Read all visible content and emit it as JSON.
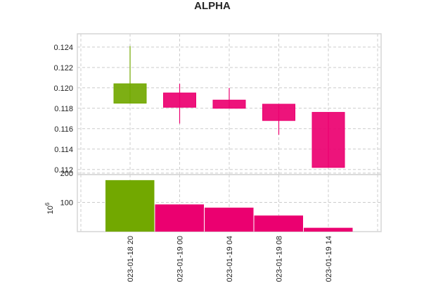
{
  "chart_data": {
    "type": "candlestick",
    "title": "ALPHA",
    "ylabel_volume_scale": "10",
    "ylabel_volume_exp": "6",
    "colors": {
      "up": "#72a800",
      "down": "#eb0070"
    },
    "categories": [
      "023-01-18 20",
      "023-01-19 00",
      "023-01-19 04",
      "023-01-19 08",
      "023-01-19 14"
    ],
    "candles": [
      {
        "open": 0.1185,
        "high": 0.1241,
        "low": 0.1185,
        "close": 0.1204,
        "direction": "up"
      },
      {
        "open": 0.1195,
        "high": 0.1204,
        "low": 0.1165,
        "close": 0.1181,
        "direction": "down"
      },
      {
        "open": 0.1188,
        "high": 0.12,
        "low": 0.118,
        "close": 0.118,
        "direction": "down"
      },
      {
        "open": 0.1184,
        "high": 0.1184,
        "low": 0.1154,
        "close": 0.1168,
        "direction": "down"
      },
      {
        "open": 0.1176,
        "high": 0.1176,
        "low": 0.1122,
        "close": 0.1122,
        "direction": "down"
      }
    ],
    "volumes": [
      176,
      93,
      82,
      55,
      13
    ],
    "price_ylim": [
      0.1115,
      0.1253
    ],
    "price_yticks": [
      "0.112",
      "0.114",
      "0.116",
      "0.118",
      "0.120",
      "0.122",
      "0.124"
    ],
    "volume_ylim": [
      0,
      195
    ],
    "volume_yticks": [
      "100",
      "200"
    ],
    "grid": true
  }
}
